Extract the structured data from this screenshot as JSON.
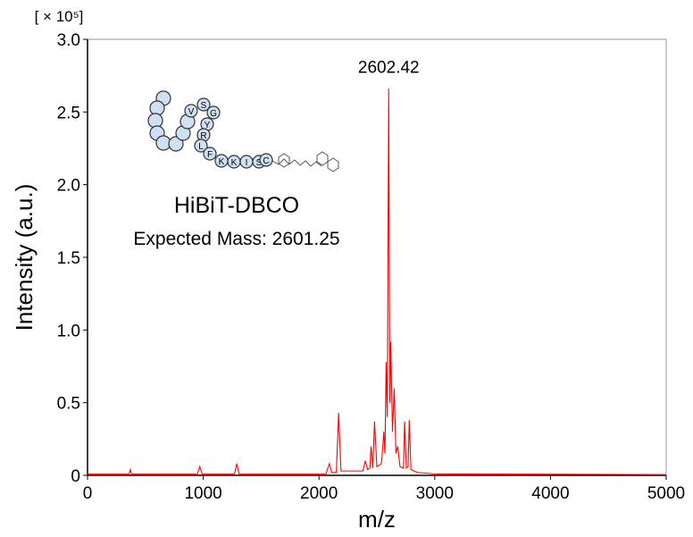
{
  "chart_data": {
    "type": "line",
    "x_label": "m/z",
    "y_label": "Intensity (a.u.)",
    "y_scale_label": "[ × 10⁵]",
    "compound_name": "HiBiT-DBCO",
    "expected_mass": "Expected Mass: 2601.25",
    "peak_label": {
      "value": 2602.42,
      "label": "2602.42"
    },
    "peptide_letters": [
      "V",
      "S",
      "G",
      "Y",
      "R",
      "L",
      "F",
      "K",
      "K",
      "I",
      "S",
      "C"
    ],
    "xlim": [
      0,
      5000
    ],
    "xticks": [
      0,
      1000,
      2000,
      3000,
      4000,
      5000
    ],
    "ylim": [
      0,
      3
    ],
    "yticks": [
      0,
      0.5,
      {
        "value": 1,
        "label": "1.0"
      },
      1.5,
      {
        "value": 2,
        "label": "2.0"
      },
      2.5,
      {
        "value": 3,
        "label": "3.0"
      }
    ],
    "color": "#ff0000",
    "x": [
      0,
      300,
      360,
      370,
      380,
      950,
      970,
      990,
      1270,
      1290,
      1310,
      2060,
      2090,
      2110,
      2150,
      2170,
      2190,
      2380,
      2400,
      2420,
      2440,
      2450,
      2465,
      2480,
      2500,
      2540,
      2560,
      2570,
      2580,
      2590,
      2602.42,
      2612,
      2620,
      2635,
      2650,
      2665,
      2680,
      2700,
      2730,
      2740,
      2755,
      2770,
      2780,
      2795,
      2850,
      3000,
      5000
    ],
    "values": [
      0.01,
      0.01,
      0.01,
      0.04,
      0.01,
      0.01,
      0.06,
      0.01,
      0.01,
      0.08,
      0.01,
      0.01,
      0.08,
      0.02,
      0.02,
      0.43,
      0.03,
      0.03,
      0.1,
      0.04,
      0.05,
      0.2,
      0.05,
      0.37,
      0.06,
      0.08,
      0.3,
      0.15,
      0.78,
      0.4,
      2.66,
      0.5,
      0.92,
      0.3,
      0.6,
      0.15,
      0.2,
      0.06,
      0.05,
      0.37,
      0.05,
      0.06,
      0.38,
      0.04,
      0.02,
      0.01,
      0.005
    ]
  }
}
